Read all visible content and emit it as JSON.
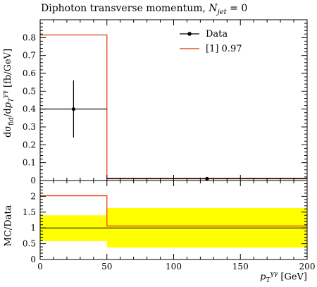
{
  "title": "Diphoton transverse momentum, N_jet = 0",
  "chart_data": [
    {
      "type": "line",
      "panel": "main",
      "ylabel": "dσ_fid/dp_T^γγ [fb/GeV]",
      "xlim": [
        0,
        200
      ],
      "ylim": [
        0,
        0.9
      ],
      "yticks": [
        "0",
        "0.1",
        "0.2",
        "0.3",
        "0.4",
        "0.5",
        "0.6",
        "0.7",
        "0.8"
      ],
      "legend_position": "top-right",
      "series": [
        {
          "name": "Data",
          "kind": "points",
          "color": "#000000",
          "points": [
            {
              "x": 25,
              "y": 0.4,
              "xerr": [
                0,
                50
              ],
              "yerr": [
                0.24,
                0.56
              ]
            },
            {
              "x": 125,
              "y": 0.01,
              "xerr": [
                50,
                200
              ],
              "yerr": [
                0.01,
                0.01
              ]
            }
          ]
        },
        {
          "name": "[1] 0.97",
          "kind": "histogram",
          "color": "#e8502b",
          "bins": [
            {
              "x0": 0,
              "x1": 50,
              "y": 0.815
            },
            {
              "x0": 50,
              "x1": 200,
              "y": 0.012
            }
          ]
        }
      ]
    },
    {
      "type": "line",
      "panel": "ratio",
      "ylabel": "MC/Data",
      "xlabel": "p_T^γγ [GeV]",
      "xlim": [
        0,
        200
      ],
      "ylim": [
        0,
        2.5
      ],
      "yticks": [
        "0",
        "0.5",
        "1",
        "1.5",
        "2"
      ],
      "xticks": [
        "0",
        "50",
        "100",
        "150",
        "200"
      ],
      "band_color": "#ffff00",
      "band": [
        {
          "x0": 0,
          "x1": 50,
          "low": 0.58,
          "high": 1.4
        },
        {
          "x0": 50,
          "x1": 200,
          "low": 0.38,
          "high": 1.63
        }
      ],
      "reference_line": 1,
      "series": [
        {
          "name": "[1] 0.97",
          "kind": "histogram",
          "color": "#e8502b",
          "bins": [
            {
              "x0": 0,
              "x1": 50,
              "y": 2.02
            },
            {
              "x0": 50,
              "x1": 200,
              "y": 1.06
            }
          ]
        }
      ]
    }
  ]
}
